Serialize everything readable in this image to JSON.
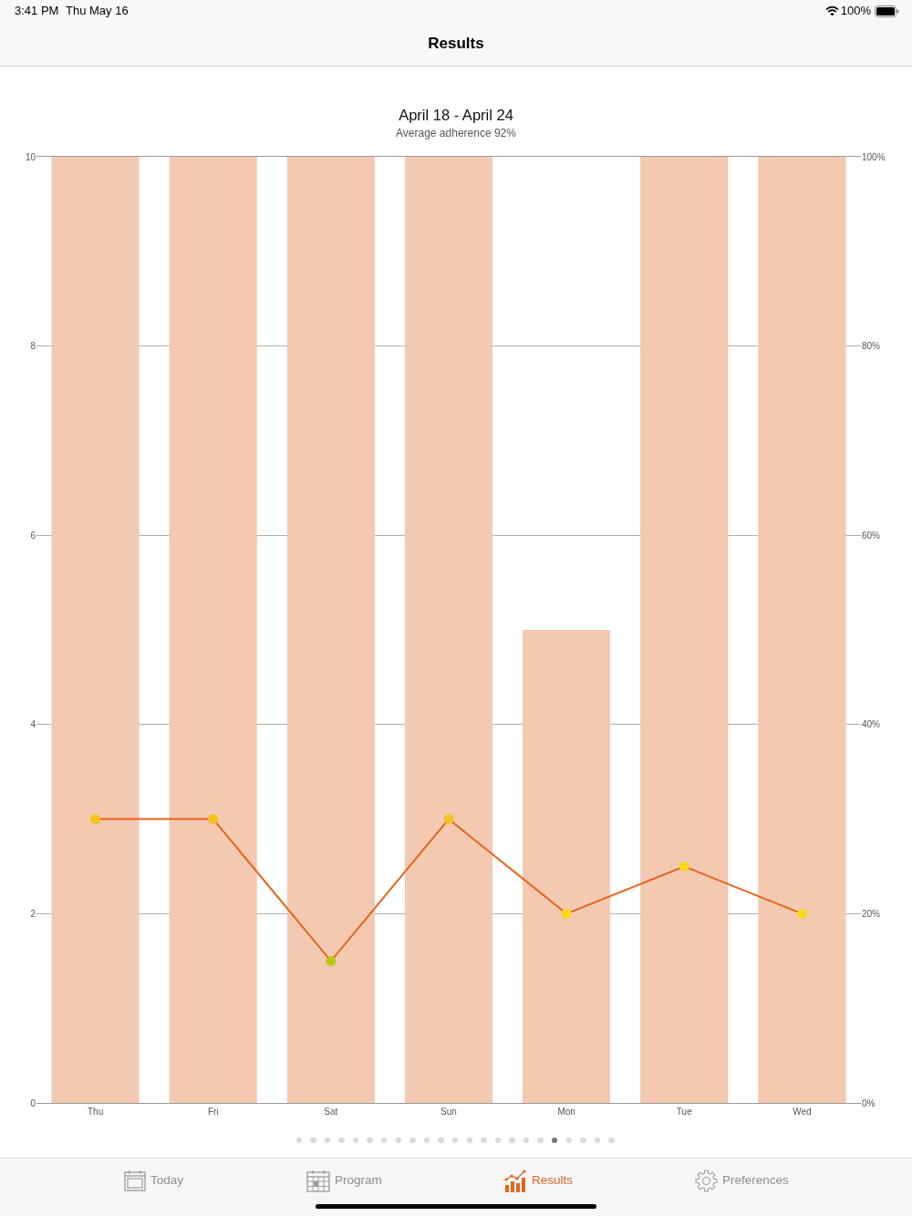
{
  "chart_data": {
    "type": "bar",
    "title": "April 18 - April 24",
    "subtitle": "Average adherence 92%",
    "annotations": [
      "3:41 PM",
      "Thu May 16",
      "100%",
      "Results",
      "Today",
      "Program",
      "Results",
      "Preferences"
    ],
    "categories": [
      "Thu",
      "Fri",
      "Sat",
      "Sun",
      "Mon",
      "Tue",
      "Wed"
    ],
    "series": [
      {
        "axis": "y2",
        "color": "#f4c9b1",
        "values": [
          100,
          100,
          100,
          100,
          50,
          100,
          100
        ]
      },
      {
        "type": "line",
        "axis": "y",
        "color": "#e5631d",
        "colors": [
          "#f5c31b",
          "#f5c31b",
          "#b9c914",
          "#f5c31b",
          "#f9d71c",
          "#f9d71c",
          "#f9d71c"
        ],
        "values": [
          3,
          3,
          1.5,
          3,
          2,
          2.5,
          2
        ]
      }
    ],
    "ylim": [
      0,
      10
    ],
    "yticks": [
      0,
      2,
      4,
      6,
      8,
      10
    ],
    "y2lim": [
      0,
      100
    ],
    "y2ticks": [
      {
        "value": 0,
        "label": "0%"
      },
      {
        "value": 20,
        "label": "20%"
      },
      {
        "value": 40,
        "label": "40%"
      },
      {
        "value": 60,
        "label": "60%"
      },
      {
        "value": 80,
        "label": "80%"
      },
      {
        "value": 100,
        "label": "100%"
      }
    ],
    "grid": "y",
    "marker": "circle"
  }
}
